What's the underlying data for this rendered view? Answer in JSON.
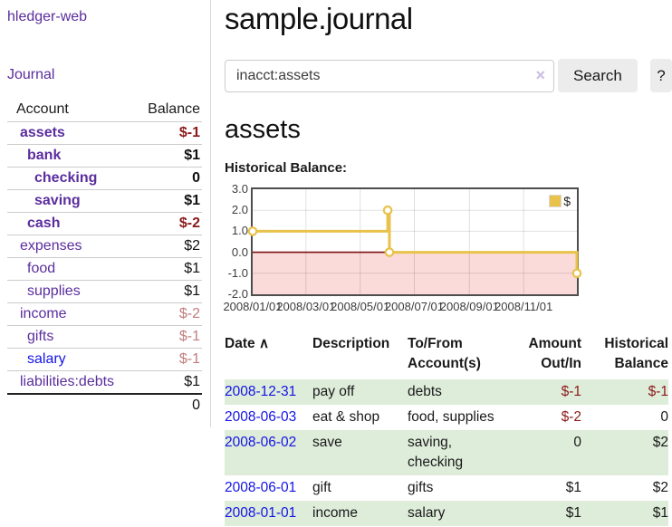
{
  "colors": {
    "link_visited_purple": "#5b2d9e",
    "link_blue": "#1414e6",
    "negative_strong": "#8b1a1a",
    "negative_faded": "#c17d7d",
    "row_stripe_green": "#deecda",
    "chart_line_gold": "#e8c24a",
    "chart_negative_fill": "#fbdada",
    "chart_zero_line": "#7d1212"
  },
  "app": {
    "brand": "hledger-web"
  },
  "sidebar": {
    "nav": {
      "journal": "Journal"
    },
    "header": {
      "account": "Account",
      "balance": "Balance"
    },
    "accounts": [
      {
        "name": "assets",
        "balance": "$-1"
      },
      {
        "name": "bank",
        "balance": "$1"
      },
      {
        "name": "checking",
        "balance": "0"
      },
      {
        "name": "saving",
        "balance": "$1"
      },
      {
        "name": "cash",
        "balance": "$-2"
      },
      {
        "name": "expenses",
        "balance": "$2"
      },
      {
        "name": "food",
        "balance": "$1"
      },
      {
        "name": "supplies",
        "balance": "$1"
      },
      {
        "name": "income",
        "balance": "$-2"
      },
      {
        "name": "gifts",
        "balance": "$-1"
      },
      {
        "name": "salary",
        "balance": "$-1"
      },
      {
        "name": "liabilities:debts",
        "balance": "$1"
      }
    ],
    "total": "0"
  },
  "main": {
    "title": "sample.journal",
    "search": {
      "value": "inacct:assets",
      "clear_glyph": "×",
      "button": "Search",
      "help": "?"
    },
    "account_heading": "assets",
    "chart_title": "Historical Balance:",
    "register": {
      "headers": {
        "date": "Date",
        "sort_arrow": "∧",
        "description": "Description",
        "tofrom_line1": "To/From",
        "tofrom_line2": "Account(s)",
        "amount_line1": "Amount",
        "amount_line2": "Out/In",
        "balance_line1": "Historical",
        "balance_line2": "Balance"
      },
      "rows": [
        {
          "date": "2008-12-31",
          "description": "pay off",
          "accounts": "debts",
          "amount": "$-1",
          "balance": "$-1"
        },
        {
          "date": "2008-06-03",
          "description": "eat & shop",
          "accounts": "food, supplies",
          "amount": "$-2",
          "balance": "0"
        },
        {
          "date": "2008-06-02",
          "description": "save",
          "accounts": "saving, checking",
          "amount": "0",
          "balance": "$2"
        },
        {
          "date": "2008-06-01",
          "description": "gift",
          "accounts": "gifts",
          "amount": "$1",
          "balance": "$2"
        },
        {
          "date": "2008-01-01",
          "description": "income",
          "accounts": "salary",
          "amount": "$1",
          "balance": "$1"
        }
      ]
    }
  },
  "chart_data": {
    "type": "line",
    "title": "Historical Balance:",
    "step": true,
    "series": [
      {
        "name": "$",
        "points": [
          [
            "2008-01-01",
            1
          ],
          [
            "2008-06-01",
            2
          ],
          [
            "2008-06-03",
            0
          ],
          [
            "2008-12-31",
            -1
          ]
        ]
      }
    ],
    "xlim": [
      "2008-01-01",
      "2008-12-31"
    ],
    "ylim": [
      -2,
      3
    ],
    "yticks": [
      "3.0",
      "2.0",
      "1.0",
      "0.0",
      "-1.0",
      "-2.0"
    ],
    "xticks": [
      "2008/01/01",
      "2008/03/01",
      "2008/05/01",
      "2008/07/01",
      "2008/09/01",
      "2008/11/01"
    ],
    "legend_position": "top-right",
    "grid": true,
    "colors": {
      "line": "#e8c24a",
      "negative_fill": "#fbdada",
      "zero_line": "#7d1212"
    }
  }
}
